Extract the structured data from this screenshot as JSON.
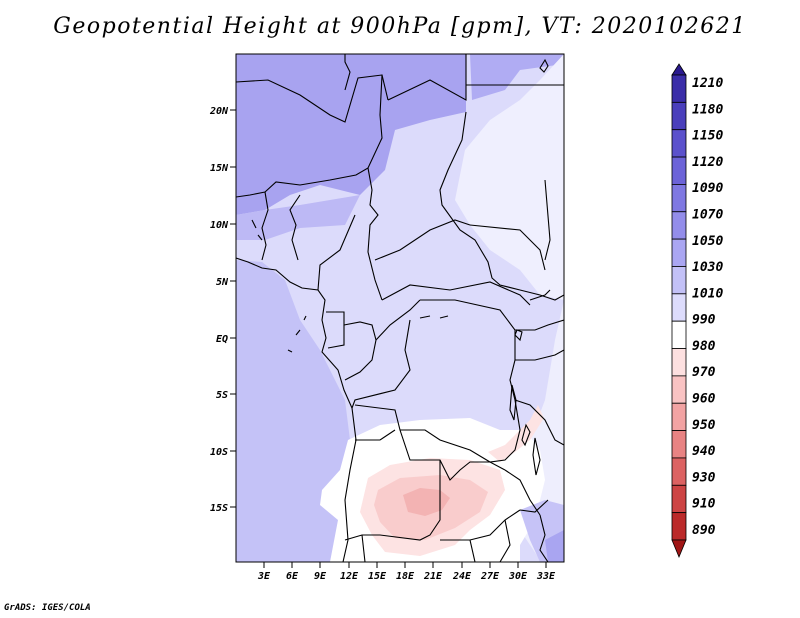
{
  "title": "Geopotential Height at 900hPa [gpm], VT: 2020102621",
  "credit": "GrADS: IGES/COLA",
  "map": {
    "variable": "Geopotential Height",
    "level": "900hPa",
    "units": "gpm",
    "valid_time": "2020102621",
    "lat_labels": [
      "20N",
      "15N",
      "10N",
      "5N",
      "EQ",
      "5S",
      "10S",
      "15S"
    ],
    "lon_labels": [
      "3E",
      "6E",
      "9E",
      "12E",
      "15E",
      "18E",
      "21E",
      "24E",
      "27E",
      "30E",
      "33E"
    ]
  },
  "colorbar": {
    "levels": [
      "1210",
      "1180",
      "1150",
      "1120",
      "1090",
      "1070",
      "1050",
      "1030",
      "1010",
      "990",
      "980",
      "970",
      "960",
      "950",
      "940",
      "930",
      "910",
      "890"
    ],
    "colors": [
      "#2a1a8e",
      "#3a2da8",
      "#4a3fbc",
      "#5b51cc",
      "#6c63d8",
      "#7f78e2",
      "#938dea",
      "#aaa6f2",
      "#c3c1f7",
      "#dddcfc",
      "#ffffff",
      "#fde0e0",
      "#f9c3c3",
      "#f2a3a3",
      "#e88383",
      "#dc6262",
      "#cd4444",
      "#bb2a2a",
      "#a01616"
    ]
  }
}
